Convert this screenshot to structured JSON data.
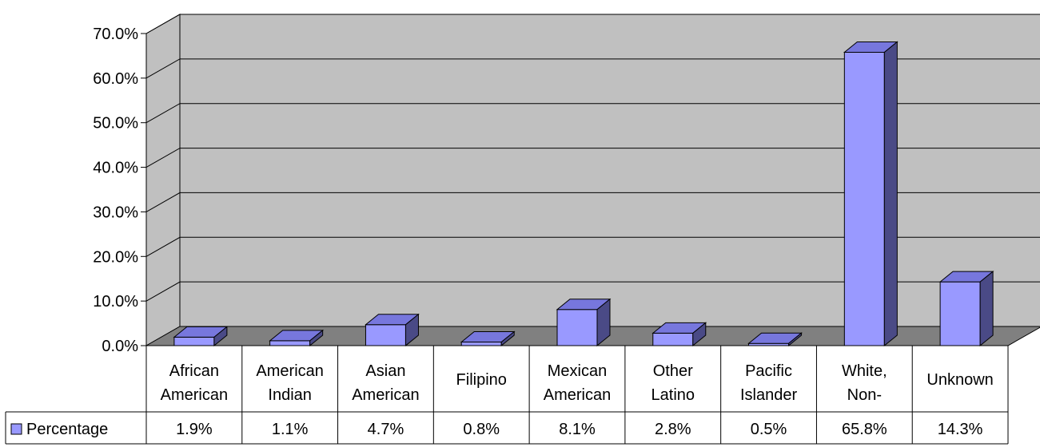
{
  "chart_data": {
    "type": "bar",
    "categories": [
      [
        "African",
        "American"
      ],
      [
        "American",
        "Indian"
      ],
      [
        "Asian",
        "American"
      ],
      [
        "Filipino"
      ],
      [
        "Mexican",
        "American"
      ],
      [
        "Other",
        "Latino"
      ],
      [
        "Pacific",
        "Islander"
      ],
      [
        "White,",
        "Non-"
      ],
      [
        "Unknown"
      ]
    ],
    "series": [
      {
        "name": "Percentage",
        "values": [
          1.9,
          1.1,
          4.7,
          0.8,
          8.1,
          2.8,
          0.5,
          65.8,
          14.3
        ],
        "value_labels": [
          "1.9%",
          "1.1%",
          "4.7%",
          "0.8%",
          "8.1%",
          "2.8%",
          "0.5%",
          "65.8%",
          "14.3%"
        ]
      }
    ],
    "y_ticks": [
      "0.0%",
      "10.0%",
      "20.0%",
      "30.0%",
      "40.0%",
      "50.0%",
      "60.0%",
      "70.0%"
    ],
    "ylim": [
      0,
      70
    ],
    "grid": true,
    "legend_placement": "data-table-left",
    "data_table": true,
    "three_d": true
  },
  "colors": {
    "bar_front": "#9999ff",
    "bar_top": "#7777dd",
    "bar_side": "#4a4a86",
    "wall": "#c0c0c0",
    "floor": "#808080",
    "grid": "#000000"
  }
}
